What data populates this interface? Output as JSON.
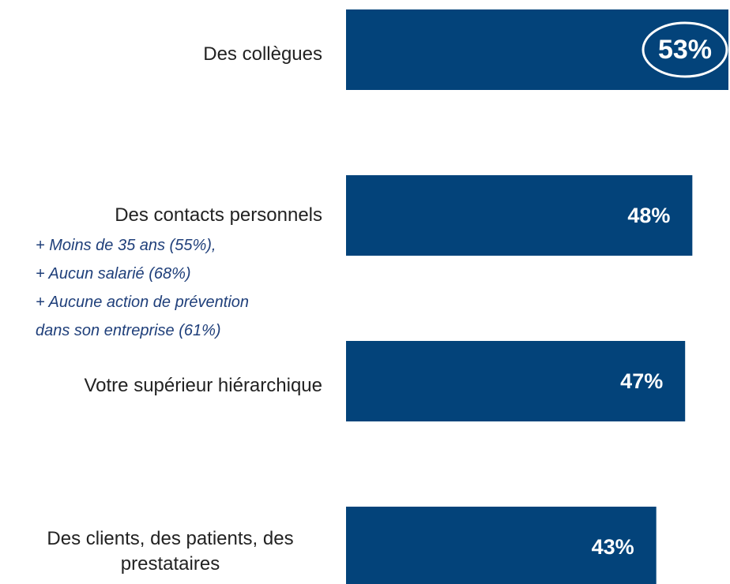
{
  "chart_data": {
    "type": "bar",
    "orientation": "horizontal",
    "categories": [
      "Des collègues",
      "Des contacts personnels",
      "Votre supérieur hiérarchique",
      "Des clients, des patients, des prestataires"
    ],
    "values": [
      53,
      48,
      47,
      43
    ],
    "value_labels": [
      "53%",
      "48%",
      "47%",
      "43%"
    ],
    "color": "#03437a",
    "xlim": [
      0,
      53
    ],
    "notes": [
      "+ Moins de 35 ans (55%),",
      "+ Aucun salarié (68%)",
      "+ Aucune action de prévention",
      "dans son entreprise (61%)"
    ]
  }
}
